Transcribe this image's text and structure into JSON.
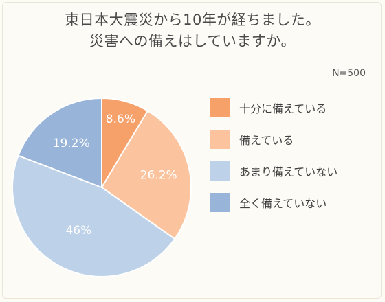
{
  "title_lines": [
    "東日本大震災から10年が経ちました。",
    "災害への備えはしていますか。"
  ],
  "sample_note": "N=500",
  "chart_data": {
    "type": "pie",
    "title": "東日本大震災から10年が経ちました。災害への備えはしていますか。",
    "categories": [
      "十分に備えている",
      "備えている",
      "あまり備えていない",
      "全く備えていない"
    ],
    "values": [
      8.6,
      26.2,
      46,
      19.2
    ],
    "labels": [
      "8.6%",
      "26.2%",
      "46%",
      "19.2%"
    ],
    "colors": [
      "#f6a06a",
      "#fbc49e",
      "#bdd1e8",
      "#98b4d8"
    ],
    "legend_position": "right",
    "start": "12 o'clock, clockwise"
  },
  "legend": [
    {
      "label": "十分に備えている",
      "color": "#f6a06a"
    },
    {
      "label": "備えている",
      "color": "#fbc49e"
    },
    {
      "label": "あまり備えていない",
      "color": "#bdd1e8"
    },
    {
      "label": "全く備えていない",
      "color": "#98b4d8"
    }
  ]
}
